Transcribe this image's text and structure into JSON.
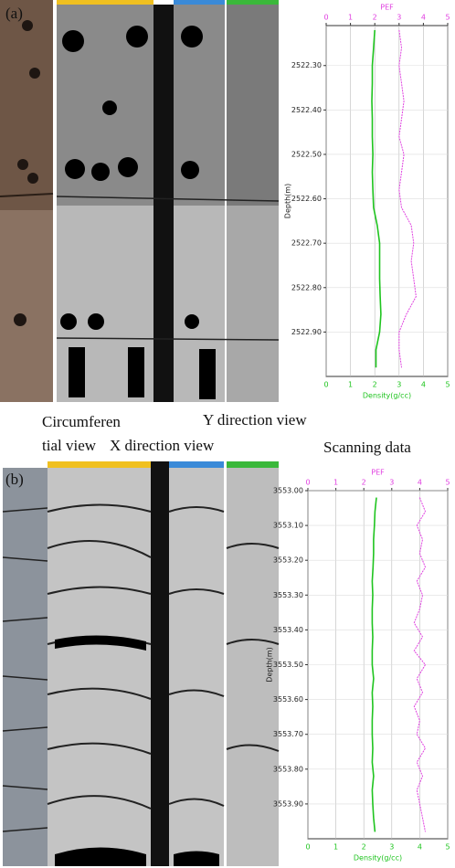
{
  "panel_labels": [
    "(a)",
    "(b)"
  ],
  "captions": [
    "Circumferen",
    "tial view",
    "X direction view",
    "Y direction view",
    "Scanning data"
  ],
  "chart_data": [
    {
      "type": "line",
      "x_title": "Density(g/cc)",
      "x2_title": "PEF",
      "y_title": "Depth(m)",
      "xlim": [
        0,
        5
      ],
      "xticks": [
        0,
        1,
        2,
        3,
        4,
        5
      ],
      "x2lim": [
        0,
        5
      ],
      "x2ticks": [
        0,
        1,
        2,
        3,
        4,
        5
      ],
      "ylim": [
        2522.21,
        2523.0
      ],
      "y_inverted": true,
      "grid": true,
      "yticks": [
        {
          "value": 2522.3,
          "label": "2522.30"
        },
        {
          "value": 2522.4,
          "label": "2522.40"
        },
        {
          "value": 2522.5,
          "label": "2522.50"
        },
        {
          "value": 2522.6,
          "label": "2522.60"
        },
        {
          "value": 2522.7,
          "label": "2522.70"
        },
        {
          "value": 2522.8,
          "label": "2522.80"
        },
        {
          "value": 2522.9,
          "label": "2522.90"
        }
      ],
      "depth": [
        2522.22,
        2522.26,
        2522.3,
        2522.34,
        2522.38,
        2522.42,
        2522.46,
        2522.5,
        2522.54,
        2522.58,
        2522.62,
        2522.66,
        2522.7,
        2522.74,
        2522.78,
        2522.82,
        2522.86,
        2522.9,
        2522.94,
        2522.98
      ],
      "series": [
        {
          "name": "Density",
          "axis": "x",
          "color": "#1fc41f",
          "values": [
            2.0,
            1.95,
            1.9,
            1.9,
            1.88,
            1.9,
            1.9,
            1.92,
            1.9,
            1.92,
            1.95,
            2.1,
            2.2,
            2.2,
            2.2,
            2.22,
            2.25,
            2.2,
            2.05,
            2.05
          ]
        },
        {
          "name": "PEF",
          "axis": "x2",
          "color": "#e040e0",
          "values": [
            3.0,
            3.1,
            3.0,
            3.1,
            3.2,
            3.1,
            3.0,
            3.2,
            3.1,
            3.0,
            3.1,
            3.5,
            3.6,
            3.5,
            3.6,
            3.7,
            3.3,
            3.0,
            3.0,
            3.1
          ]
        }
      ]
    },
    {
      "type": "line",
      "x_title": "Density(g/cc)",
      "x2_title": "PEF",
      "y_title": "Depth(m)",
      "xlim": [
        0,
        5
      ],
      "xticks": [
        0,
        1,
        2,
        3,
        4,
        5
      ],
      "x2lim": [
        0,
        5
      ],
      "x2ticks": [
        0,
        1,
        2,
        3,
        4,
        5
      ],
      "ylim": [
        3553.0,
        3554.0
      ],
      "y_inverted": true,
      "grid": true,
      "yticks": [
        {
          "value": 3553.0,
          "label": "3553.00"
        },
        {
          "value": 3553.1,
          "label": "3553.10"
        },
        {
          "value": 3553.2,
          "label": "3553.20"
        },
        {
          "value": 3553.3,
          "label": "3553.30"
        },
        {
          "value": 3553.4,
          "label": "3553.40"
        },
        {
          "value": 3553.5,
          "label": "3553.50"
        },
        {
          "value": 3553.6,
          "label": "3553.60"
        },
        {
          "value": 3553.7,
          "label": "3553.70"
        },
        {
          "value": 3553.8,
          "label": "3553.80"
        },
        {
          "value": 3553.9,
          "label": "3553.90"
        }
      ],
      "depth": [
        3553.02,
        3553.06,
        3553.1,
        3553.14,
        3553.18,
        3553.22,
        3553.26,
        3553.3,
        3553.34,
        3553.38,
        3553.42,
        3553.46,
        3553.5,
        3553.54,
        3553.58,
        3553.62,
        3553.66,
        3553.7,
        3553.74,
        3553.78,
        3553.82,
        3553.86,
        3553.9,
        3553.94,
        3553.98
      ],
      "series": [
        {
          "name": "Density",
          "axis": "x",
          "color": "#1fc41f",
          "values": [
            2.45,
            2.4,
            2.38,
            2.35,
            2.35,
            2.33,
            2.3,
            2.32,
            2.3,
            2.3,
            2.32,
            2.3,
            2.3,
            2.35,
            2.3,
            2.32,
            2.3,
            2.3,
            2.32,
            2.3,
            2.35,
            2.3,
            2.32,
            2.35,
            2.4
          ]
        },
        {
          "name": "PEF",
          "axis": "x2",
          "color": "#e040e0",
          "values": [
            4.0,
            4.2,
            3.9,
            4.1,
            4.0,
            4.2,
            3.9,
            4.1,
            4.0,
            3.8,
            4.1,
            3.8,
            4.2,
            3.9,
            4.1,
            3.8,
            4.0,
            3.9,
            4.2,
            3.9,
            4.1,
            3.9,
            4.0,
            4.1,
            4.2
          ]
        }
      ]
    }
  ]
}
